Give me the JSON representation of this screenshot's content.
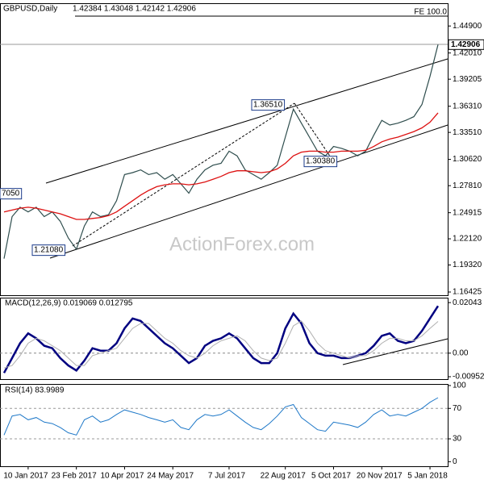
{
  "chart_data": [
    {
      "type": "line",
      "title": "GBPUSD,Daily",
      "ohlc_label": "1.42384 1.43048 1.42142 1.42906",
      "ylim": [
        1.1608,
        1.4725
      ],
      "yticks": [
        1.16425,
        {
          "value": 1.1932,
          "label": "1.19320"
        },
        {
          "value": 1.2212,
          "label": "1.22120"
        },
        1.24915,
        {
          "value": 1.2781,
          "label": "1.27810"
        },
        {
          "value": 1.3062,
          "label": "1.30620"
        },
        {
          "value": 1.3351,
          "label": "1.33510"
        },
        {
          "value": 1.3631,
          "label": "1.36310"
        },
        1.39205,
        {
          "value": 1.4201,
          "label": "1.42010"
        },
        {
          "value": 1.449,
          "label": "1.44900"
        }
      ],
      "annotations": [
        "FE 100.0",
        "1.36510",
        "1.30380",
        "1.21080",
        "7050"
      ],
      "watermark": "ActionForex.com",
      "series": [
        {
          "name": "GBPUSD",
          "color": "#2e4d4d",
          "values": [
            1.2,
            1.245,
            1.255,
            1.25,
            1.255,
            1.245,
            1.25,
            1.24,
            1.222,
            1.21,
            1.235,
            1.25,
            1.245,
            1.247,
            1.262,
            1.29,
            1.292,
            1.295,
            1.29,
            1.292,
            1.285,
            1.29,
            1.28,
            1.27,
            1.285,
            1.295,
            1.3,
            1.302,
            1.315,
            1.31,
            1.295,
            1.29,
            1.285,
            1.292,
            1.3,
            1.33,
            1.36,
            1.345,
            1.33,
            1.315,
            1.31,
            1.32,
            1.318,
            1.315,
            1.31,
            1.315,
            1.332,
            1.348,
            1.343,
            1.345,
            1.348,
            1.352,
            1.365,
            1.395,
            1.42906
          ]
        },
        {
          "name": "MA",
          "color": "#dd1111",
          "values": [
            1.25,
            1.252,
            1.254,
            1.255,
            1.254,
            1.252,
            1.25,
            1.248,
            1.245,
            1.242,
            1.242,
            1.243,
            1.244,
            1.246,
            1.25,
            1.256,
            1.262,
            1.268,
            1.273,
            1.277,
            1.279,
            1.28,
            1.28,
            1.279,
            1.28,
            1.282,
            1.285,
            1.288,
            1.292,
            1.294,
            1.294,
            1.293,
            1.292,
            1.293,
            1.296,
            1.302,
            1.31,
            1.314,
            1.315,
            1.315,
            1.314,
            1.314,
            1.315,
            1.315,
            1.315,
            1.316,
            1.32,
            1.325,
            1.328,
            1.33,
            1.333,
            1.336,
            1.34,
            1.346,
            1.356
          ]
        }
      ]
    },
    {
      "type": "line",
      "title": "MACD(12,26,9) 0.019069 0.012795",
      "ylim": [
        -0.0105,
        0.0221
      ],
      "yticks": [
        0.02043,
        {
          "value": 0,
          "label": "0.00"
        },
        -0.009524
      ],
      "series": [
        {
          "name": "MACD",
          "color": "#000080",
          "values": [
            -0.008,
            -0.002,
            0.004,
            0.008,
            0.006,
            0.003,
            0.002,
            -0.002,
            -0.005,
            -0.007,
            -0.003,
            0.002,
            0.001,
            0.001,
            0.004,
            0.01,
            0.014,
            0.013,
            0.01,
            0.007,
            0.004,
            0.002,
            -0.001,
            -0.004,
            -0.002,
            0.003,
            0.005,
            0.006,
            0.008,
            0.006,
            0.002,
            -0.002,
            -0.004,
            -0.004,
            0,
            0.01,
            0.016,
            0.012,
            0.004,
            0,
            -0.001,
            -0.001,
            -0.002,
            -0.002,
            -0.001,
            0,
            0.003,
            0.007,
            0.008,
            0.005,
            0.004,
            0.005,
            0.009,
            0.014,
            0.019069
          ]
        },
        {
          "name": "Signal",
          "color": "#b0b0b0",
          "values": [
            -0.006,
            -0.005,
            -0.001,
            0.004,
            0.006,
            0.005,
            0.003,
            0.001,
            -0.002,
            -0.005,
            -0.005,
            -0.001,
            0,
            0.001,
            0.002,
            0.006,
            0.01,
            0.012,
            0.012,
            0.009,
            0.006,
            0.004,
            0.001,
            -0.001,
            -0.002,
            0,
            0.003,
            0.005,
            0.006,
            0.007,
            0.005,
            0.001,
            -0.002,
            -0.003,
            -0.002,
            0.004,
            0.011,
            0.013,
            0.009,
            0.004,
            0.001,
            0,
            -0.001,
            -0.002,
            -0.001,
            -0.001,
            0.001,
            0.004,
            0.006,
            0.006,
            0.005,
            0.005,
            0.007,
            0.01,
            0.012795
          ]
        }
      ]
    },
    {
      "type": "line",
      "title": "RSI(14) 83.9989",
      "ylim": [
        -6,
        101
      ],
      "yticks": [
        100,
        70,
        30,
        0
      ],
      "levels": [
        70,
        30
      ],
      "categories": [
        null,
        null,
        null,
        "10 Jan 2017",
        null,
        null,
        null,
        null,
        null,
        "23 Feb 2017",
        null,
        null,
        null,
        null,
        null,
        "10 Apr 2017",
        null,
        null,
        null,
        null,
        null,
        "24 May 2017",
        null,
        null,
        null,
        null,
        null,
        null,
        "7 Jul 2017",
        null,
        null,
        null,
        null,
        null,
        null,
        "22 Aug 2017",
        null,
        null,
        null,
        null,
        null,
        "5 Oct 2017",
        null,
        null,
        null,
        null,
        null,
        "20 Nov 2017",
        null,
        null,
        null,
        null,
        null,
        "5 Jan 2018",
        null
      ],
      "series": [
        {
          "name": "RSI",
          "color": "#1e78c8",
          "values": [
            35,
            60,
            62,
            55,
            58,
            52,
            50,
            45,
            38,
            35,
            55,
            60,
            52,
            55,
            62,
            68,
            65,
            62,
            58,
            55,
            52,
            55,
            45,
            42,
            55,
            62,
            60,
            62,
            68,
            60,
            52,
            45,
            42,
            50,
            60,
            72,
            75,
            58,
            50,
            42,
            40,
            52,
            50,
            48,
            45,
            52,
            62,
            68,
            60,
            62,
            60,
            65,
            70,
            78,
            83.9989
          ]
        }
      ]
    }
  ]
}
